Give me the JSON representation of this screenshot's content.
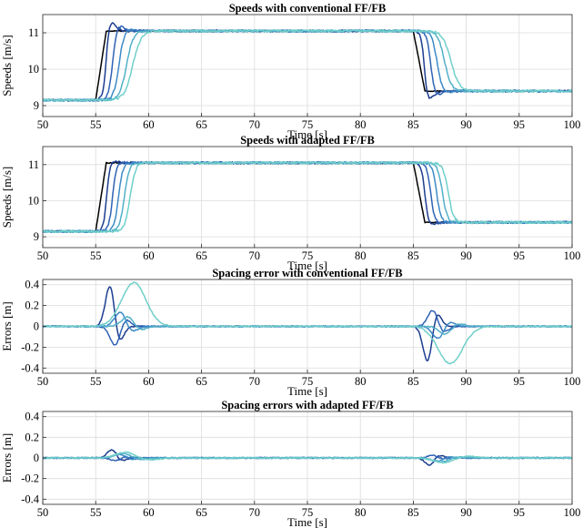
{
  "chart_data": [
    {
      "type": "line",
      "title": "Speeds with conventional FF/FB",
      "xlabel": "Time [s]",
      "ylabel": "Speeds [m/s]",
      "xlim": [
        50,
        100
      ],
      "ylim": [
        8.7,
        11.5
      ],
      "xticks": [
        50,
        55,
        60,
        65,
        70,
        75,
        80,
        85,
        90,
        95,
        100
      ],
      "yticks": [
        9,
        10,
        11
      ],
      "grid": true,
      "signal": "speed",
      "model": "conventional",
      "series": [
        {
          "color": "#000000",
          "delay": 0.0,
          "tau": 0.0,
          "overshoot": 0.0,
          "amp": 0,
          "noise": 0.012
        },
        {
          "color": "#1c3d8f",
          "delay": 0.5,
          "tau": 0.32,
          "overshoot": 0.28,
          "amp": 0,
          "noise": 0.03
        },
        {
          "color": "#2f62b4",
          "delay": 1.1,
          "tau": 0.42,
          "overshoot": 0.16,
          "amp": 0,
          "noise": 0.03
        },
        {
          "color": "#3d8ac6",
          "delay": 1.7,
          "tau": 0.55,
          "overshoot": 0.06,
          "amp": 0,
          "noise": 0.03
        },
        {
          "color": "#52b0c8",
          "delay": 2.4,
          "tau": 0.7,
          "overshoot": 0.0,
          "amp": 0,
          "noise": 0.03
        },
        {
          "color": "#6fcfc9",
          "delay": 3.0,
          "tau": 0.85,
          "overshoot": 0.0,
          "amp": 0,
          "noise": 0.03
        }
      ]
    },
    {
      "type": "line",
      "title": "Speeds with adapted FF/FB",
      "xlabel": "Time [s]",
      "ylabel": "Speeds [m/s]",
      "xlim": [
        50,
        100
      ],
      "ylim": [
        8.7,
        11.5
      ],
      "xticks": [
        50,
        55,
        60,
        65,
        70,
        75,
        80,
        85,
        90,
        95,
        100
      ],
      "yticks": [
        9,
        10,
        11
      ],
      "grid": true,
      "signal": "speed",
      "model": "adapted",
      "series": [
        {
          "color": "#000000",
          "delay": 0.0,
          "tau": 0.0,
          "overshoot": 0.0,
          "amp": 0,
          "noise": 0.012
        },
        {
          "color": "#1c3d8f",
          "delay": 0.55,
          "tau": 0.35,
          "overshoot": 0.07,
          "amp": 0,
          "noise": 0.03
        },
        {
          "color": "#2f62b4",
          "delay": 1.1,
          "tau": 0.4,
          "overshoot": 0.03,
          "amp": 0,
          "noise": 0.03
        },
        {
          "color": "#3d8ac6",
          "delay": 1.65,
          "tau": 0.45,
          "overshoot": 0.0,
          "amp": 0,
          "noise": 0.03
        },
        {
          "color": "#52b0c8",
          "delay": 2.2,
          "tau": 0.5,
          "overshoot": 0.0,
          "amp": 0,
          "noise": 0.03
        },
        {
          "color": "#6fcfc9",
          "delay": 2.75,
          "tau": 0.55,
          "overshoot": 0.0,
          "amp": 0,
          "noise": 0.03
        }
      ]
    },
    {
      "type": "line",
      "title": "Spacing error with conventional FF/FB",
      "xlabel": "Time [s]",
      "ylabel": "Errors [m]",
      "xlim": [
        50,
        100
      ],
      "ylim": [
        -0.45,
        0.45
      ],
      "xticks": [
        50,
        55,
        60,
        65,
        70,
        75,
        80,
        85,
        90,
        95,
        100
      ],
      "yticks": [
        0.4,
        0.2,
        0,
        -0.2,
        -0.4
      ],
      "ytick_labels": [
        "0.4",
        "0.2",
        "0",
        "-0.2",
        "-0.4"
      ],
      "grid": true,
      "signal": "error",
      "model": "conventional",
      "series": [
        {
          "color": "#1c3d8f",
          "delay": 0.4,
          "tau": 0.45,
          "overshoot": 0,
          "amp": 0.43,
          "noise": 0.006
        },
        {
          "color": "#2f62b4",
          "delay": 0.9,
          "tau": 0.5,
          "overshoot": 0,
          "amp": -0.2,
          "noise": 0.006
        },
        {
          "color": "#3d8ac6",
          "delay": 1.4,
          "tau": 0.55,
          "overshoot": 0,
          "amp": 0.15,
          "noise": 0.006
        },
        {
          "color": "#52b0c8",
          "delay": 2.1,
          "tau": 0.6,
          "overshoot": 0,
          "amp": 0.1,
          "noise": 0.006
        },
        {
          "color": "#6fcfc9",
          "delay": 2.2,
          "tau": 1.15,
          "overshoot": 0,
          "amp": 0.42,
          "noise": 0.006
        }
      ]
    },
    {
      "type": "line",
      "title": "Spacing errors with adapted FF/FB",
      "xlabel": "Time [s]",
      "ylabel": "Errors [m]",
      "xlim": [
        50,
        100
      ],
      "ylim": [
        -0.45,
        0.45
      ],
      "xticks": [
        50,
        55,
        60,
        65,
        70,
        75,
        80,
        85,
        90,
        95,
        100
      ],
      "yticks": [
        0.4,
        0.2,
        0,
        -0.2,
        -0.4
      ],
      "ytick_labels": [
        "0.4",
        "0.2",
        "0",
        "-0.2",
        "-0.4"
      ],
      "grid": true,
      "signal": "error",
      "model": "adapted",
      "series": [
        {
          "color": "#1c3d8f",
          "delay": 0.6,
          "tau": 0.45,
          "overshoot": 0,
          "amp": 0.09,
          "noise": 0.006
        },
        {
          "color": "#2f62b4",
          "delay": 0.9,
          "tau": 0.5,
          "overshoot": 0,
          "amp": -0.03,
          "noise": 0.006
        },
        {
          "color": "#3d8ac6",
          "delay": 1.3,
          "tau": 0.6,
          "overshoot": 0,
          "amp": 0.04,
          "noise": 0.006
        },
        {
          "color": "#52b0c8",
          "delay": 1.7,
          "tau": 0.8,
          "overshoot": 0,
          "amp": 0.05,
          "noise": 0.006
        },
        {
          "color": "#6fcfc9",
          "delay": 2.0,
          "tau": 1.0,
          "overshoot": 0,
          "amp": 0.06,
          "noise": 0.006
        }
      ]
    }
  ],
  "scenario": {
    "v_low": 9.15,
    "v_high": 11.05,
    "v_end": 9.4,
    "t_up_start": 55.0,
    "t_up_end": 56.0,
    "t_down_start": 85.0,
    "t_down_end": 86.1
  }
}
